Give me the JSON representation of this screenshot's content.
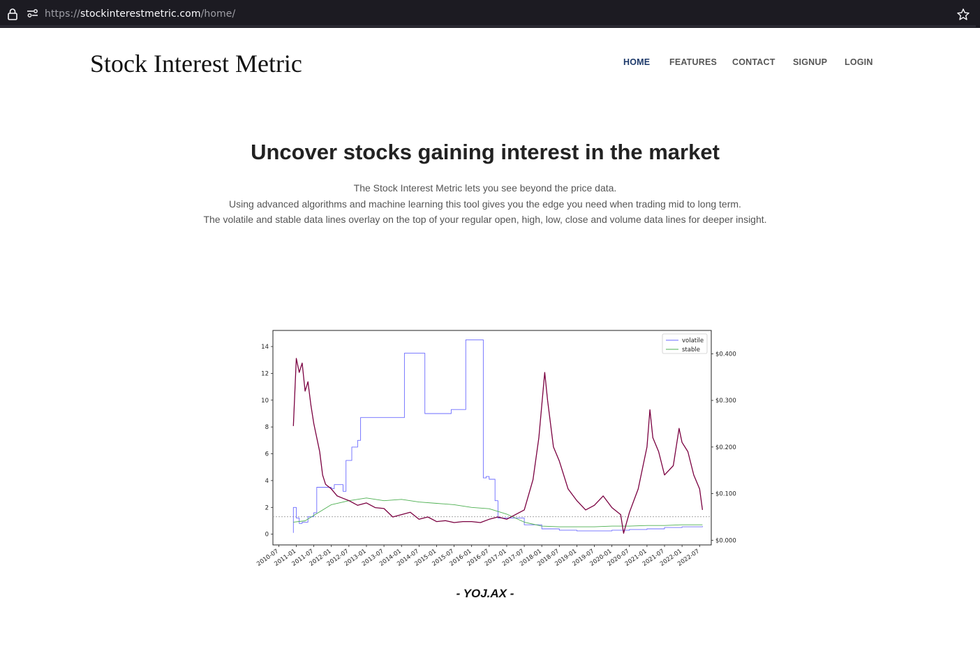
{
  "browser": {
    "url_scheme": "https://",
    "url_host": "stockinterestmetric.com",
    "url_path": "/home/"
  },
  "site": {
    "brand": "Stock Interest Metric",
    "nav": [
      {
        "label": "HOME",
        "active": true
      },
      {
        "label": "FEATURES",
        "active": false
      },
      {
        "label": "CONTACT",
        "active": false
      },
      {
        "label": "SIGNUP",
        "active": false
      },
      {
        "label": "LOGIN",
        "active": false
      }
    ]
  },
  "hero": {
    "title": "Uncover stocks gaining interest in the market",
    "lines": [
      "The Stock Interest Metric lets you see beyond the price data.",
      "Using advanced algorithms and machine learning this tool gives you the edge you need when trading mid to long term.",
      "The volatile and stable data lines overlay on the top of your regular open, high, low, close and volume data lines for deeper insight."
    ]
  },
  "ticker_caption": "- YOJ.AX -",
  "colors": {
    "volatile": "#6b6bff",
    "stable": "#4caf50",
    "price": "#7a0040",
    "nav_active": "#1e3a6b"
  },
  "chart_data": {
    "type": "line",
    "x_tick_labels": [
      "2010-07",
      "2011-01",
      "2011-07",
      "2012-01",
      "2012-07",
      "2013-01",
      "2013-07",
      "2014-01",
      "2014-07",
      "2015-01",
      "2015-07",
      "2016-01",
      "2016-07",
      "2017-01",
      "2017-07",
      "2018-01",
      "2018-07",
      "2019-01",
      "2019-07",
      "2020-01",
      "2020-07",
      "2021-01",
      "2021-07",
      "2022-01",
      "2022-07"
    ],
    "y_left_ticks": [
      "0",
      "2",
      "4",
      "6",
      "8",
      "10",
      "12",
      "14"
    ],
    "y_left_lim": [
      -0.8,
      15.2
    ],
    "y_right_ticks": [
      "$0.000",
      "$0.100",
      "$0.200",
      "$0.300",
      "$0.400"
    ],
    "y_right_lim": [
      -0.01,
      0.45
    ],
    "x_range": [
      "2010-05",
      "2022-11"
    ],
    "legend_position": "top-right",
    "dashed_reference_left": 1.3,
    "series": [
      {
        "name": "volatile",
        "axis": "left",
        "points": [
          [
            "2010-12",
            0.1
          ],
          [
            "2010-12",
            2.0
          ],
          [
            "2011-01",
            1.2
          ],
          [
            "2011-02",
            0.8
          ],
          [
            "2011-03",
            0.9
          ],
          [
            "2011-05",
            1.3
          ],
          [
            "2011-07",
            1.6
          ],
          [
            "2011-08",
            3.5
          ],
          [
            "2011-12",
            3.5
          ],
          [
            "2012-01",
            3.4
          ],
          [
            "2012-02",
            3.7
          ],
          [
            "2012-04",
            3.7
          ],
          [
            "2012-05",
            3.2
          ],
          [
            "2012-06",
            5.5
          ],
          [
            "2012-08",
            6.5
          ],
          [
            "2012-10",
            7.0
          ],
          [
            "2012-11",
            8.7
          ],
          [
            "2014-01",
            8.7
          ],
          [
            "2014-02",
            13.5
          ],
          [
            "2014-08",
            13.5
          ],
          [
            "2014-09",
            9.0
          ],
          [
            "2015-05",
            9.0
          ],
          [
            "2015-06",
            9.3
          ],
          [
            "2015-10",
            9.3
          ],
          [
            "2015-11",
            14.5
          ],
          [
            "2016-04",
            14.5
          ],
          [
            "2016-05",
            4.2
          ],
          [
            "2016-06",
            4.3
          ],
          [
            "2016-07",
            4.1
          ],
          [
            "2016-08",
            4.1
          ],
          [
            "2016-09",
            2.5
          ],
          [
            "2016-10",
            1.2
          ],
          [
            "2017-01",
            1.2
          ],
          [
            "2017-07",
            0.7
          ],
          [
            "2018-01",
            0.4
          ],
          [
            "2018-07",
            0.3
          ],
          [
            "2019-01",
            0.25
          ],
          [
            "2019-07",
            0.25
          ],
          [
            "2020-01",
            0.3
          ],
          [
            "2020-07",
            0.35
          ],
          [
            "2021-01",
            0.4
          ],
          [
            "2021-07",
            0.5
          ],
          [
            "2022-01",
            0.55
          ],
          [
            "2022-08",
            0.6
          ]
        ]
      },
      {
        "name": "stable",
        "axis": "left",
        "points": [
          [
            "2010-12",
            0.9
          ],
          [
            "2011-04",
            1.0
          ],
          [
            "2011-07",
            1.4
          ],
          [
            "2012-01",
            2.2
          ],
          [
            "2012-07",
            2.5
          ],
          [
            "2013-01",
            2.7
          ],
          [
            "2013-07",
            2.5
          ],
          [
            "2014-01",
            2.6
          ],
          [
            "2014-07",
            2.4
          ],
          [
            "2015-01",
            2.3
          ],
          [
            "2015-07",
            2.2
          ],
          [
            "2016-01",
            2.0
          ],
          [
            "2016-07",
            1.9
          ],
          [
            "2017-01",
            1.5
          ],
          [
            "2017-07",
            0.9
          ],
          [
            "2018-01",
            0.6
          ],
          [
            "2018-07",
            0.55
          ],
          [
            "2019-01",
            0.55
          ],
          [
            "2019-07",
            0.55
          ],
          [
            "2020-01",
            0.6
          ],
          [
            "2020-07",
            0.6
          ],
          [
            "2021-01",
            0.65
          ],
          [
            "2021-07",
            0.65
          ],
          [
            "2022-01",
            0.7
          ],
          [
            "2022-08",
            0.7
          ]
        ]
      },
      {
        "name": "price",
        "axis": "right",
        "points": [
          [
            "2010-12",
            0.245
          ],
          [
            "2011-01",
            0.39
          ],
          [
            "2011-02",
            0.36
          ],
          [
            "2011-03",
            0.38
          ],
          [
            "2011-04",
            0.32
          ],
          [
            "2011-05",
            0.34
          ],
          [
            "2011-06",
            0.29
          ],
          [
            "2011-07",
            0.25
          ],
          [
            "2011-08",
            0.22
          ],
          [
            "2011-09",
            0.19
          ],
          [
            "2011-10",
            0.14
          ],
          [
            "2011-11",
            0.12
          ],
          [
            "2012-01",
            0.11
          ],
          [
            "2012-03",
            0.095
          ],
          [
            "2012-05",
            0.09
          ],
          [
            "2012-07",
            0.085
          ],
          [
            "2012-10",
            0.075
          ],
          [
            "2013-01",
            0.08
          ],
          [
            "2013-04",
            0.07
          ],
          [
            "2013-07",
            0.068
          ],
          [
            "2013-10",
            0.05
          ],
          [
            "2014-01",
            0.055
          ],
          [
            "2014-04",
            0.06
          ],
          [
            "2014-07",
            0.045
          ],
          [
            "2014-10",
            0.05
          ],
          [
            "2015-01",
            0.04
          ],
          [
            "2015-04",
            0.042
          ],
          [
            "2015-07",
            0.038
          ],
          [
            "2015-10",
            0.04
          ],
          [
            "2016-01",
            0.04
          ],
          [
            "2016-04",
            0.038
          ],
          [
            "2016-07",
            0.045
          ],
          [
            "2016-10",
            0.05
          ],
          [
            "2017-01",
            0.045
          ],
          [
            "2017-04",
            0.055
          ],
          [
            "2017-07",
            0.065
          ],
          [
            "2017-10",
            0.13
          ],
          [
            "2017-12",
            0.22
          ],
          [
            "2018-01",
            0.29
          ],
          [
            "2018-02",
            0.36
          ],
          [
            "2018-03",
            0.3
          ],
          [
            "2018-05",
            0.2
          ],
          [
            "2018-07",
            0.17
          ],
          [
            "2018-10",
            0.11
          ],
          [
            "2019-01",
            0.085
          ],
          [
            "2019-04",
            0.065
          ],
          [
            "2019-07",
            0.075
          ],
          [
            "2019-10",
            0.095
          ],
          [
            "2020-01",
            0.07
          ],
          [
            "2020-04",
            0.055
          ],
          [
            "2020-05",
            0.015
          ],
          [
            "2020-07",
            0.06
          ],
          [
            "2020-10",
            0.11
          ],
          [
            "2021-01",
            0.2
          ],
          [
            "2021-02",
            0.28
          ],
          [
            "2021-03",
            0.22
          ],
          [
            "2021-05",
            0.19
          ],
          [
            "2021-07",
            0.14
          ],
          [
            "2021-10",
            0.16
          ],
          [
            "2021-12",
            0.24
          ],
          [
            "2022-01",
            0.21
          ],
          [
            "2022-03",
            0.19
          ],
          [
            "2022-05",
            0.14
          ],
          [
            "2022-07",
            0.11
          ],
          [
            "2022-08",
            0.065
          ]
        ]
      }
    ]
  }
}
